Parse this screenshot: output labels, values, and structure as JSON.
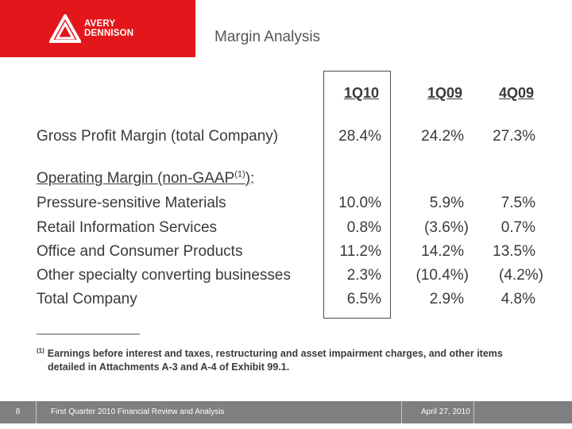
{
  "brand": {
    "logo_line1": "AVERY",
    "logo_line2": "DENNISON",
    "color": "#e3161b"
  },
  "title": "Margin Analysis",
  "table": {
    "headers": [
      "1Q10",
      "1Q09",
      "4Q09"
    ],
    "gross_profit": {
      "label": "Gross Profit Margin (total Company)",
      "values": [
        "28.4%",
        "24.2%",
        "27.3%"
      ]
    },
    "operating_heading": {
      "text": "Operating Margin (non-GAAP",
      "sup": "(1)",
      "close": ")",
      "colon": ":"
    },
    "rows": [
      {
        "label": "Pressure-sensitive Materials",
        "values": [
          "10.0%",
          "5.9%",
          "7.5%"
        ]
      },
      {
        "label": "Retail Information Services",
        "values": [
          "0.8%",
          "(3.6%)",
          "0.7%"
        ]
      },
      {
        "label": "Office and Consumer Products",
        "values": [
          "11.2%",
          "14.2%",
          "13.5%"
        ]
      },
      {
        "label": "Other specialty converting businesses",
        "values": [
          "2.3%",
          "(10.4%)",
          "(4.2%)"
        ]
      },
      {
        "label": "Total Company",
        "values": [
          "6.5%",
          "2.9%",
          "4.8%"
        ]
      }
    ]
  },
  "footnote": {
    "mark": "(1)",
    "line1": "Earnings before interest and taxes, restructuring and asset impairment charges, and other items",
    "line2": "detailed in Attachments A-3 and A-4 of Exhibit 99.1."
  },
  "footer": {
    "page": "8",
    "text": "First Quarter 2010 Financial Review and Analysis",
    "date": "April 27, 2010"
  }
}
